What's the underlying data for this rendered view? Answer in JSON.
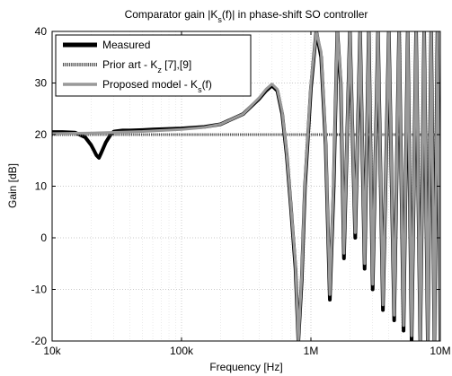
{
  "chart_data": {
    "type": "line",
    "title": {
      "prefix": "Comparator gain |K",
      "sub": "s",
      "suffix": "(f)| in phase-shift SO controller"
    },
    "xlabel": "Frequency [Hz]",
    "ylabel": "Gain [dB]",
    "xscale": "log",
    "xlim": [
      10000,
      10000000
    ],
    "ylim": [
      -20,
      40
    ],
    "xticks": [
      {
        "value": 10000,
        "label": "10k"
      },
      {
        "value": 100000,
        "label": "100k"
      },
      {
        "value": 1000000,
        "label": "1M"
      },
      {
        "value": 10000000,
        "label": "10M"
      }
    ],
    "yticks": [
      {
        "value": -20,
        "label": "-20"
      },
      {
        "value": -10,
        "label": "-10"
      },
      {
        "value": 0,
        "label": "0"
      },
      {
        "value": 10,
        "label": "10"
      },
      {
        "value": 20,
        "label": "20"
      },
      {
        "value": 30,
        "label": "30"
      },
      {
        "value": 40,
        "label": "40"
      }
    ],
    "grid": true,
    "legend_position": "top-left",
    "legend": [
      {
        "key": "measured",
        "text": "Measured"
      },
      {
        "key": "prior",
        "prefix": "Prior art - K",
        "sub": "z",
        "suffix": " [7],[9]"
      },
      {
        "key": "proposed",
        "prefix": "Proposed model - K",
        "sub": "s",
        "suffix": "(f)"
      }
    ],
    "series": [
      {
        "key": "measured",
        "color": "#000000",
        "style": "solid-thick",
        "x": [
          10000,
          12000,
          15000,
          18000,
          20000,
          21000,
          22000,
          23000,
          24000,
          26000,
          28000,
          30000,
          35000,
          40000,
          50000,
          60000,
          80000,
          100000,
          150000,
          200000,
          300000,
          400000,
          450000,
          500000,
          550000,
          600000,
          650000,
          700000,
          760000,
          800000,
          850000,
          900000,
          1000000,
          1100000,
          1200000,
          1300000,
          1400000,
          1500000,
          1600000,
          1700000,
          1800000,
          2000000,
          2200000,
          2400000,
          2600000,
          2800000,
          3000000,
          3300000,
          3600000,
          4000000,
          4400000,
          4800000,
          5200000,
          5600000,
          6000000,
          6500000,
          7000000,
          7500000,
          8000000,
          8500000,
          9000000,
          9500000,
          10000000
        ],
        "y": [
          20.5,
          20.5,
          20.4,
          19.5,
          18.0,
          17.0,
          16.0,
          15.5,
          16.5,
          18.5,
          19.8,
          20.6,
          20.8,
          20.8,
          20.9,
          21.0,
          21.1,
          21.2,
          21.5,
          22.0,
          24.0,
          27.0,
          28.5,
          29.5,
          28.5,
          24.0,
          16.0,
          6.0,
          -6.0,
          -20.0,
          -8.0,
          10.0,
          29.0,
          40.0,
          35.0,
          18.0,
          -12.0,
          10.0,
          40.0,
          30.0,
          -4.0,
          40.0,
          0.0,
          40.0,
          -6.0,
          40.0,
          -10.0,
          40.0,
          -14.0,
          40.0,
          -16.0,
          40.0,
          -18.0,
          40.0,
          -20.0,
          40.0,
          -20.0,
          40.0,
          -20.0,
          40.0,
          -20.0,
          40.0,
          -20.0
        ]
      },
      {
        "key": "prior",
        "color": "#555555",
        "style": "dotted",
        "x": [
          10000,
          10000000
        ],
        "y": [
          20,
          20
        ]
      },
      {
        "key": "proposed",
        "color": "#999999",
        "style": "solid",
        "x": [
          10000,
          20000,
          50000,
          100000,
          150000,
          200000,
          300000,
          400000,
          450000,
          500000,
          550000,
          600000,
          650000,
          700000,
          760000,
          800000,
          850000,
          900000,
          1000000,
          1100000,
          1200000,
          1300000,
          1400000,
          1500000,
          1600000,
          1700000,
          1800000,
          2000000,
          2200000,
          2400000,
          2600000,
          2800000,
          3000000,
          3300000,
          3600000,
          4000000,
          4400000,
          4800000,
          5200000,
          5600000,
          6000000,
          6500000,
          7000000,
          7500000,
          8000000,
          8500000,
          9000000,
          9500000,
          10000000
        ],
        "y": [
          20.2,
          20.3,
          20.6,
          21.0,
          21.4,
          22.0,
          24.0,
          27.2,
          28.8,
          29.8,
          28.8,
          24.5,
          16.5,
          6.5,
          -5.0,
          -20.0,
          -7.0,
          11.0,
          30.0,
          40.0,
          36.0,
          19.0,
          -11.0,
          12.0,
          40.0,
          31.0,
          -3.0,
          40.0,
          1.0,
          40.0,
          -5.0,
          40.0,
          -9.0,
          40.0,
          -13.0,
          40.0,
          -15.0,
          40.0,
          -17.0,
          40.0,
          -19.0,
          40.0,
          -20.0,
          40.0,
          -20.0,
          40.0,
          -20.0,
          40.0,
          -20.0
        ]
      }
    ]
  }
}
